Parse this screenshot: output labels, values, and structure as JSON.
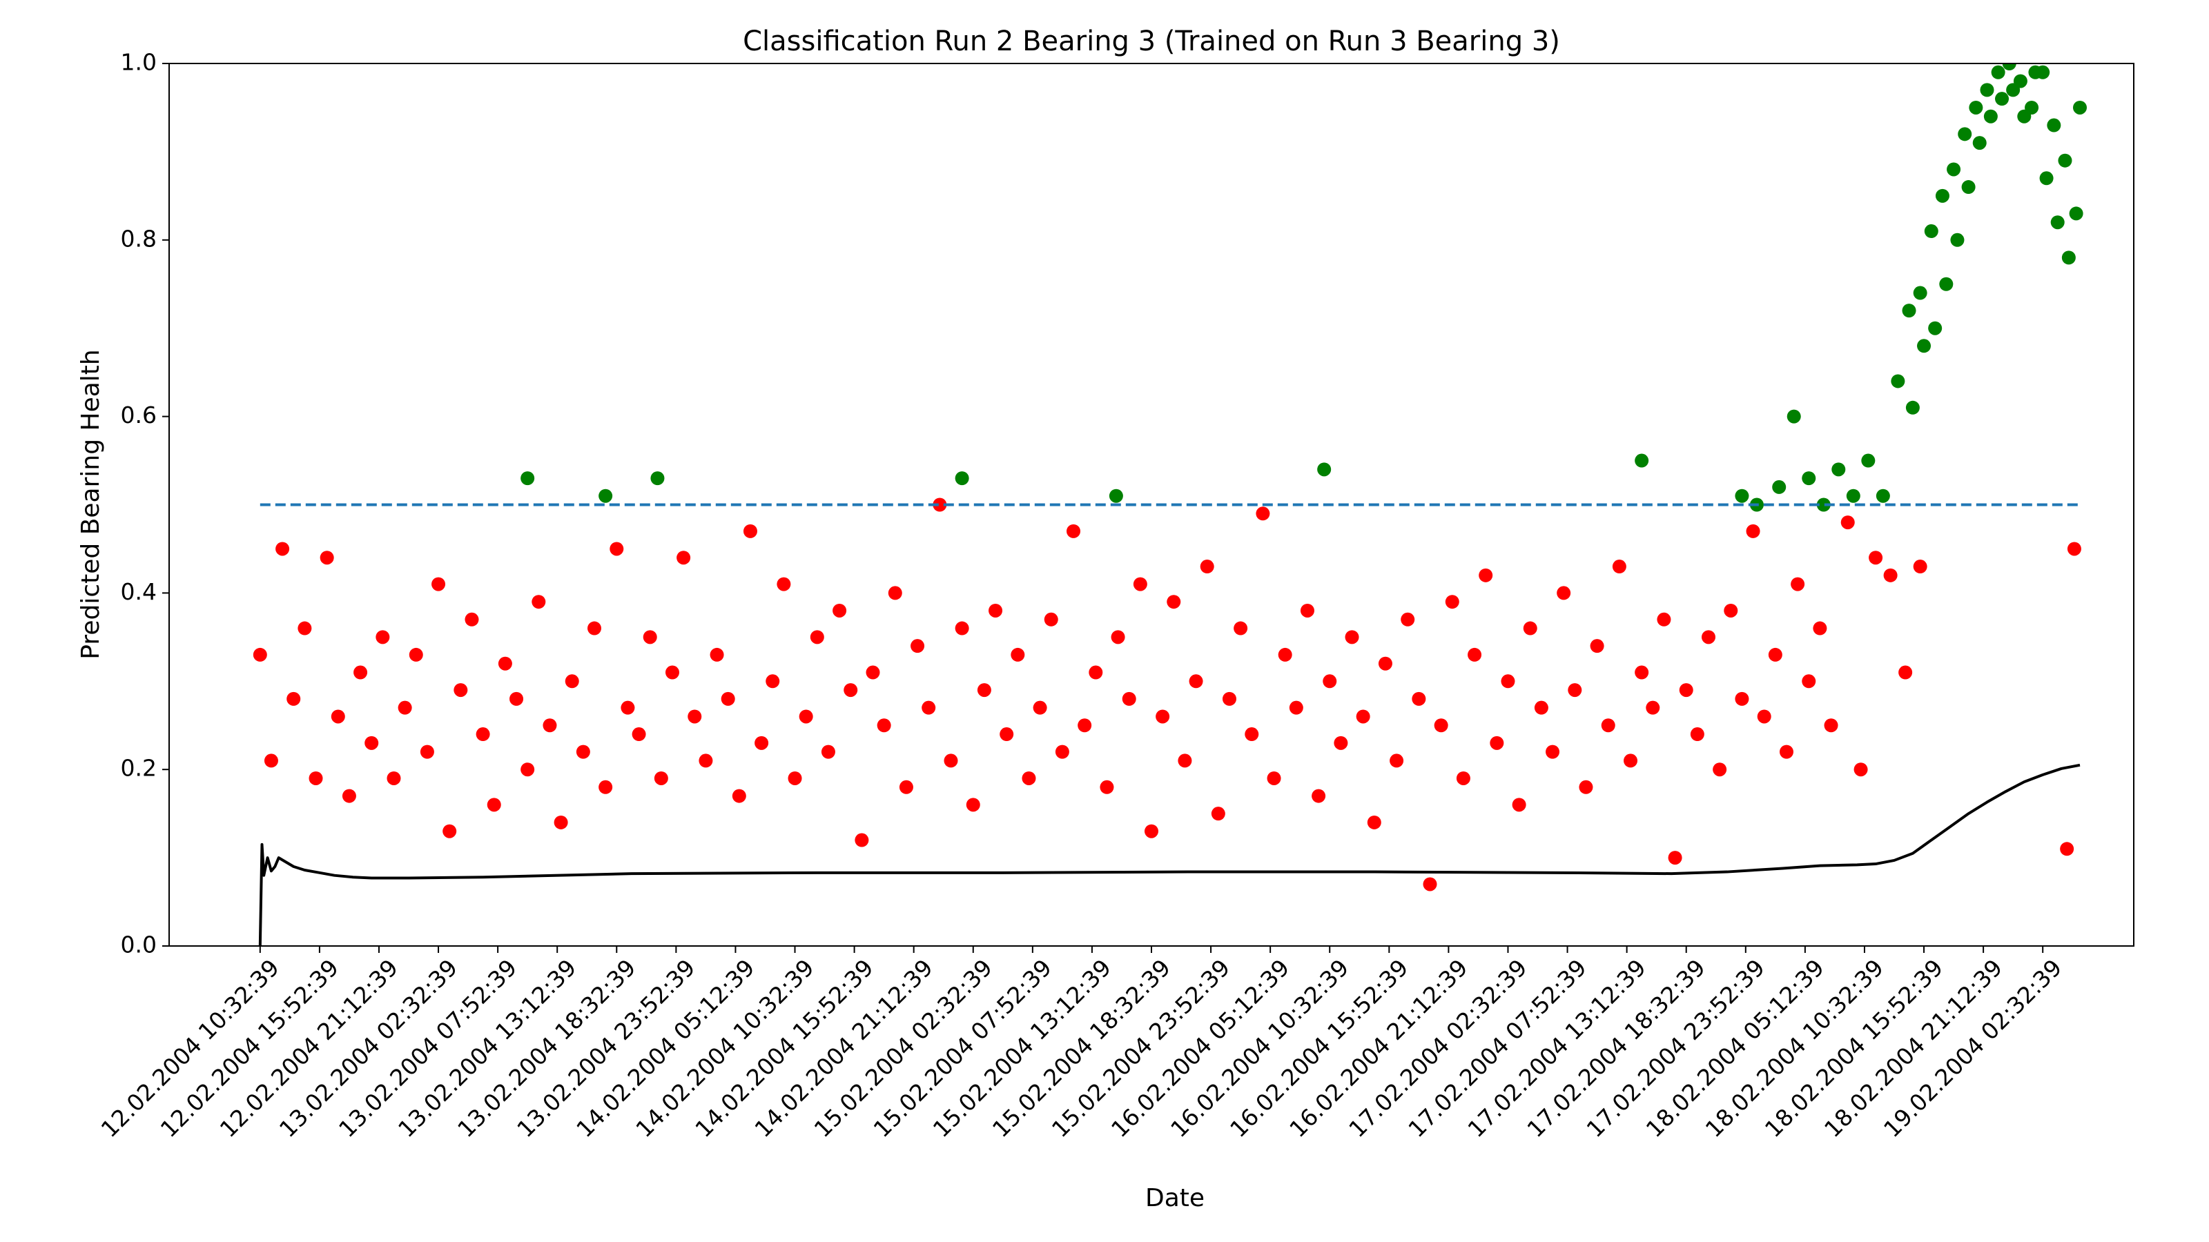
{
  "chart_data": {
    "type": "scatter",
    "title": "Classification Run 2 Bearing 3 (Trained on Run 3 Bearing 3)",
    "x_label": "Date",
    "y_label": "Predicted Bearing Health",
    "xlim": [
      -49,
      1009
    ],
    "ylim": [
      0,
      1
    ],
    "yticks": [
      {
        "value": 0,
        "label": "0.0"
      },
      0.2,
      0.4,
      0.6,
      0.8,
      {
        "value": 1,
        "label": "1.0"
      }
    ],
    "xticks": [
      {
        "value": 0,
        "label": "12.02.2004 10:32:39"
      },
      {
        "value": 32,
        "label": "12.02.2004 15:52:39"
      },
      {
        "value": 64,
        "label": "12.02.2004 21:12:39"
      },
      {
        "value": 96,
        "label": "13.02.2004 02:32:39"
      },
      {
        "value": 128,
        "label": "13.02.2004 07:52:39"
      },
      {
        "value": 160,
        "label": "13.02.2004 13:12:39"
      },
      {
        "value": 192,
        "label": "13.02.2004 18:32:39"
      },
      {
        "value": 224,
        "label": "13.02.2004 23:52:39"
      },
      {
        "value": 256,
        "label": "14.02.2004 05:12:39"
      },
      {
        "value": 288,
        "label": "14.02.2004 10:32:39"
      },
      {
        "value": 320,
        "label": "14.02.2004 15:52:39"
      },
      {
        "value": 352,
        "label": "14.02.2004 21:12:39"
      },
      {
        "value": 384,
        "label": "15.02.2004 02:32:39"
      },
      {
        "value": 416,
        "label": "15.02.2004 07:52:39"
      },
      {
        "value": 448,
        "label": "15.02.2004 13:12:39"
      },
      {
        "value": 480,
        "label": "15.02.2004 18:32:39"
      },
      {
        "value": 512,
        "label": "15.02.2004 23:52:39"
      },
      {
        "value": 544,
        "label": "16.02.2004 05:12:39"
      },
      {
        "value": 576,
        "label": "16.02.2004 10:32:39"
      },
      {
        "value": 608,
        "label": "16.02.2004 15:52:39"
      },
      {
        "value": 640,
        "label": "16.02.2004 21:12:39"
      },
      {
        "value": 672,
        "label": "17.02.2004 02:32:39"
      },
      {
        "value": 704,
        "label": "17.02.2004 07:52:39"
      },
      {
        "value": 736,
        "label": "17.02.2004 13:12:39"
      },
      {
        "value": 768,
        "label": "17.02.2004 18:32:39"
      },
      {
        "value": 800,
        "label": "17.02.2004 23:52:39"
      },
      {
        "value": 832,
        "label": "18.02.2004 05:12:39"
      },
      {
        "value": 864,
        "label": "18.02.2004 10:32:39"
      },
      {
        "value": 896,
        "label": "18.02.2004 15:52:39"
      },
      {
        "value": 928,
        "label": "18.02.2004 21:12:39"
      },
      {
        "value": 960,
        "label": "19.02.2004 02:32:39"
      }
    ],
    "series": [
      {
        "color": "#ff0000",
        "style": "points",
        "x": [
          0,
          6,
          12,
          18,
          24,
          30,
          36,
          42,
          48,
          54,
          60,
          66,
          72,
          78,
          84,
          90,
          96,
          102,
          108,
          114,
          120,
          126,
          132,
          138,
          144,
          150,
          156,
          162,
          168,
          174,
          180,
          186,
          192,
          198,
          204,
          210,
          216,
          222,
          228,
          234,
          240,
          246,
          252,
          258,
          264,
          270,
          276,
          282,
          288,
          294,
          300,
          306,
          312,
          318,
          324,
          330,
          336,
          342,
          348,
          354,
          360,
          366,
          372,
          378,
          384,
          390,
          396,
          402,
          408,
          414,
          420,
          426,
          432,
          438,
          444,
          450,
          456,
          462,
          468,
          474,
          480,
          486,
          492,
          498,
          504,
          510,
          516,
          522,
          528,
          534,
          540,
          546,
          552,
          558,
          564,
          570,
          576,
          582,
          588,
          594,
          600,
          606,
          612,
          618,
          624,
          630,
          636,
          642,
          648,
          654,
          660,
          666,
          672,
          678,
          684,
          690,
          696,
          702,
          708,
          714,
          720,
          726,
          732,
          738,
          744,
          750,
          756,
          762,
          768,
          774,
          780,
          786,
          792,
          798,
          804,
          810,
          816,
          822,
          828,
          834,
          840,
          846,
          855,
          862,
          870,
          878,
          886,
          894,
          973,
          977
        ],
        "values": [
          0.33,
          0.21,
          0.45,
          0.28,
          0.36,
          0.19,
          0.44,
          0.26,
          0.17,
          0.31,
          0.23,
          0.35,
          0.19,
          0.27,
          0.33,
          0.22,
          0.41,
          0.13,
          0.29,
          0.37,
          0.24,
          0.16,
          0.32,
          0.28,
          0.2,
          0.39,
          0.25,
          0.14,
          0.3,
          0.22,
          0.36,
          0.18,
          0.45,
          0.27,
          0.24,
          0.35,
          0.19,
          0.31,
          0.44,
          0.26,
          0.21,
          0.33,
          0.28,
          0.17,
          0.47,
          0.23,
          0.3,
          0.41,
          0.19,
          0.26,
          0.35,
          0.22,
          0.38,
          0.29,
          0.12,
          0.31,
          0.25,
          0.4,
          0.18,
          0.34,
          0.27,
          0.5,
          0.21,
          0.36,
          0.16,
          0.29,
          0.38,
          0.24,
          0.33,
          0.19,
          0.27,
          0.37,
          0.22,
          0.47,
          0.25,
          0.31,
          0.18,
          0.35,
          0.28,
          0.41,
          0.13,
          0.26,
          0.39,
          0.21,
          0.3,
          0.43,
          0.15,
          0.28,
          0.36,
          0.24,
          0.49,
          0.19,
          0.33,
          0.27,
          0.38,
          0.17,
          0.3,
          0.23,
          0.35,
          0.26,
          0.14,
          0.32,
          0.21,
          0.37,
          0.28,
          0.07,
          0.25,
          0.39,
          0.19,
          0.33,
          0.42,
          0.23,
          0.3,
          0.16,
          0.36,
          0.27,
          0.22,
          0.4,
          0.29,
          0.18,
          0.34,
          0.25,
          0.43,
          0.21,
          0.31,
          0.27,
          0.37,
          0.1,
          0.29,
          0.24,
          0.35,
          0.2,
          0.38,
          0.28,
          0.47,
          0.26,
          0.33,
          0.22,
          0.41,
          0.3,
          0.36,
          0.25,
          0.48,
          0.2,
          0.44,
          0.42,
          0.31,
          0.43,
          0.11,
          0.45
        ]
      },
      {
        "color": "#008000",
        "style": "points",
        "x": [
          144,
          186,
          214,
          378,
          461,
          573,
          744,
          798,
          806,
          818,
          826,
          834,
          842,
          850,
          858,
          866,
          874,
          882,
          888,
          894,
          900,
          906,
          912,
          918,
          924,
          930,
          936,
          942,
          948,
          954,
          960,
          966,
          972,
          978,
          890,
          902,
          914,
          926,
          938,
          950,
          962,
          974,
          896,
          908,
          920,
          932,
          944,
          956,
          968,
          980
        ],
        "values": [
          0.53,
          0.51,
          0.53,
          0.53,
          0.51,
          0.54,
          0.55,
          0.51,
          0.5,
          0.52,
          0.6,
          0.53,
          0.5,
          0.54,
          0.51,
          0.55,
          0.51,
          0.64,
          0.72,
          0.74,
          0.81,
          0.85,
          0.88,
          0.92,
          0.95,
          0.97,
          0.99,
          1.0,
          0.98,
          0.95,
          0.99,
          0.93,
          0.89,
          0.83,
          0.61,
          0.7,
          0.8,
          0.91,
          0.96,
          0.94,
          0.87,
          0.78,
          0.68,
          0.75,
          0.86,
          0.94,
          0.97,
          0.99,
          0.82,
          0.95
        ]
      },
      {
        "color": "#000000",
        "style": "line",
        "x": [
          0,
          1,
          2,
          4,
          6,
          8,
          10,
          14,
          18,
          24,
          32,
          40,
          50,
          60,
          80,
          120,
          200,
          300,
          400,
          500,
          600,
          700,
          760,
          790,
          820,
          840,
          860,
          870,
          880,
          890,
          900,
          910,
          920,
          930,
          940,
          950,
          960,
          970,
          980
        ],
        "values": [
          0,
          0.115,
          0.08,
          0.1,
          0.085,
          0.09,
          0.1,
          0.095,
          0.09,
          0.086,
          0.083,
          0.08,
          0.078,
          0.077,
          0.077,
          0.078,
          0.082,
          0.083,
          0.083,
          0.084,
          0.084,
          0.083,
          0.082,
          0.084,
          0.088,
          0.091,
          0.092,
          0.093,
          0.097,
          0.105,
          0.12,
          0.135,
          0.15,
          0.163,
          0.175,
          0.186,
          0.194,
          0.201,
          0.205
        ]
      },
      {
        "color": "#1f77b4",
        "style": "dashed",
        "x": [
          0,
          980
        ],
        "values": [
          0.5,
          0.5
        ]
      }
    ]
  }
}
